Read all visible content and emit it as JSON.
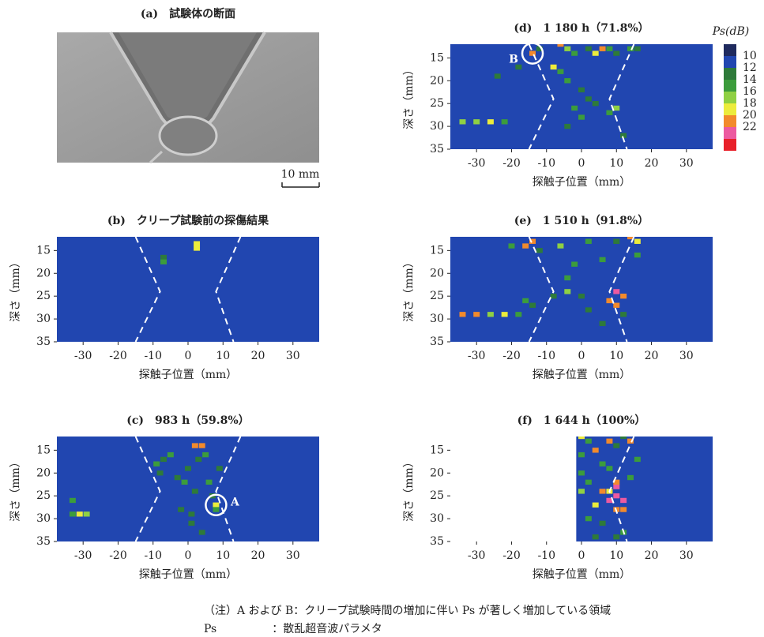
{
  "photo": {
    "title": "(a)　試験体の断面",
    "scale_label": "10 mm"
  },
  "colorbar": {
    "title": "Ps(dB)",
    "ticks": [
      10,
      12,
      14,
      16,
      18,
      20,
      22
    ],
    "colors": [
      "#1f2a5e",
      "#2146b0",
      "#2e7a3a",
      "#3c9c3c",
      "#8fd043",
      "#ecec3c",
      "#f28a2c",
      "#ec5aa0",
      "#e8202a"
    ]
  },
  "chart_data": [
    {
      "type": "heatmap",
      "title": "(b)　クリープ試験前の探傷結果",
      "xlabel": "探触子位置（mm）",
      "ylabel": "深さ（mm）",
      "xlim": [
        -37.5,
        37.5
      ],
      "ylim": [
        12,
        35
      ],
      "y_inverted": true,
      "xticks": [
        -30,
        -20,
        -10,
        0,
        10,
        20,
        30
      ],
      "yticks": [
        15,
        20,
        25,
        30,
        35
      ],
      "cells": {
        "x": [
          2.5,
          2.5,
          -7,
          -7
        ],
        "depth": [
          13.5,
          14.5,
          16.5,
          17.5
        ],
        "value": [
          19,
          18,
          13,
          14
        ]
      },
      "annotations": []
    },
    {
      "type": "heatmap",
      "title": "(c)　983 h（59.8%）",
      "xlabel": "探触子位置（mm）",
      "ylabel": "深さ（mm）",
      "xlim": [
        -37.5,
        37.5
      ],
      "ylim": [
        12,
        35
      ],
      "y_inverted": true,
      "xticks": [
        -30,
        -20,
        -10,
        0,
        10,
        20,
        30
      ],
      "yticks": [
        15,
        20,
        25,
        30,
        35
      ],
      "cells": {
        "x": [
          2,
          4,
          -7,
          -9,
          -5,
          -3,
          0,
          2,
          5,
          6,
          8,
          -2,
          1,
          7,
          -33,
          -33,
          -31,
          -29,
          3,
          -1,
          4,
          8,
          9,
          -8,
          1
        ],
        "depth": [
          14,
          14,
          17,
          18,
          16,
          21,
          19,
          24,
          16,
          22,
          27,
          28,
          29,
          25,
          26,
          29,
          29,
          29,
          17,
          22,
          33,
          28,
          19,
          20,
          31
        ],
        "value": [
          21,
          20,
          13,
          15,
          14,
          13,
          13,
          13,
          15,
          14,
          19,
          13,
          12,
          13,
          14,
          14,
          18,
          17,
          13,
          14,
          12,
          15,
          13,
          13,
          13
        ]
      },
      "annotations": [
        {
          "text": "A",
          "x": 8,
          "depth": 27
        }
      ]
    },
    {
      "type": "heatmap",
      "title": "(d)　1 180 h（71.8%）",
      "xlabel": "探触子位置（mm）",
      "ylabel": "深さ（mm）",
      "xlim": [
        -37.5,
        37.5
      ],
      "ylim": [
        12,
        35
      ],
      "y_inverted": true,
      "xticks": [
        -30,
        -20,
        -10,
        0,
        10,
        20,
        30
      ],
      "yticks": [
        15,
        20,
        25,
        30,
        35
      ],
      "cells": {
        "x": [
          -14,
          -12,
          -6,
          -4,
          -2,
          2,
          4,
          6,
          8,
          10,
          14,
          16,
          -8,
          -6,
          -4,
          0,
          2,
          -2,
          4,
          -34,
          -30,
          -26,
          -22,
          8,
          10,
          -4,
          0,
          -18,
          -24,
          12
        ],
        "depth": [
          14,
          13,
          12,
          13,
          14,
          13,
          14,
          13,
          13,
          14,
          13,
          13,
          17,
          18,
          20,
          22,
          24,
          26,
          25,
          29,
          29,
          29,
          29,
          27,
          26,
          30,
          28,
          17,
          19,
          32
        ],
        "value": [
          20,
          13,
          21,
          17,
          14,
          13,
          19,
          20,
          14,
          13,
          14,
          13,
          19,
          14,
          14,
          13,
          13,
          14,
          13,
          17,
          17,
          18,
          14,
          14,
          16,
          13,
          14,
          13,
          13,
          13
        ]
      },
      "annotations": [
        {
          "text": "B",
          "x": -14,
          "depth": 14
        }
      ]
    },
    {
      "type": "heatmap",
      "title": "(e)　1 510 h（91.8%）",
      "xlabel": "探触子位置（mm）",
      "ylabel": "深さ（mm）",
      "xlim": [
        -37.5,
        37.5
      ],
      "ylim": [
        12,
        35
      ],
      "y_inverted": true,
      "xticks": [
        -30,
        -20,
        -10,
        0,
        10,
        20,
        30
      ],
      "yticks": [
        15,
        20,
        25,
        30,
        35
      ],
      "cells": {
        "x": [
          -16,
          -14,
          -12,
          -6,
          -2,
          2,
          6,
          10,
          14,
          16,
          -16,
          -8,
          -4,
          0,
          8,
          10,
          10,
          12,
          -34,
          -30,
          -26,
          -22,
          -18,
          -14,
          -20,
          -4,
          2,
          6,
          12,
          16
        ],
        "depth": [
          14,
          13,
          15,
          14,
          18,
          13,
          17,
          13,
          12,
          13,
          26,
          25,
          24,
          25,
          26,
          24,
          27,
          25,
          29,
          29,
          29,
          29,
          29,
          27,
          14,
          21,
          28,
          31,
          29,
          16
        ],
        "value": [
          21,
          20,
          13,
          16,
          14,
          14,
          15,
          13,
          21,
          18,
          14,
          13,
          16,
          13,
          20,
          22,
          21,
          20,
          21,
          20,
          17,
          18,
          14,
          13,
          14,
          14,
          13,
          13,
          13,
          14
        ]
      },
      "annotations": []
    },
    {
      "type": "heatmap",
      "title": "(f)　1 644 h（100%）",
      "xlabel": "探触子位置（mm）",
      "ylabel": "深さ（mm）",
      "xlim": [
        -37.5,
        37.5
      ],
      "ylim": [
        12,
        35
      ],
      "y_inverted": true,
      "xticks": [
        -30,
        -20,
        -10,
        0,
        10,
        20,
        30
      ],
      "yticks": [
        15,
        20,
        25,
        30,
        35
      ],
      "cells": {
        "x": [
          0,
          2,
          0,
          4,
          8,
          10,
          12,
          14,
          16,
          0,
          2,
          6,
          8,
          10,
          4,
          8,
          10,
          12,
          10,
          12,
          0,
          2,
          6,
          14,
          10,
          12,
          4,
          8,
          6,
          10
        ],
        "depth": [
          12,
          13,
          16,
          15,
          13,
          14,
          12,
          13,
          17,
          20,
          22,
          24,
          24,
          23,
          27,
          26,
          25,
          26,
          28,
          28,
          24,
          30,
          31,
          21,
          34,
          33,
          34,
          19,
          18,
          22
        ],
        "value": [
          18,
          14,
          14,
          20,
          21,
          13,
          13,
          20,
          14,
          15,
          14,
          21,
          19,
          22,
          18,
          22,
          22,
          22,
          21,
          21,
          16,
          14,
          13,
          14,
          13,
          15,
          13,
          14,
          14,
          20
        ]
      },
      "annotations": []
    }
  ],
  "notes": [
    "（注）A および B：クリープ試験時間の増加に伴い Ps が著しく増加している領域",
    "Ps　　　　　：散乱超音波パラメタ"
  ]
}
